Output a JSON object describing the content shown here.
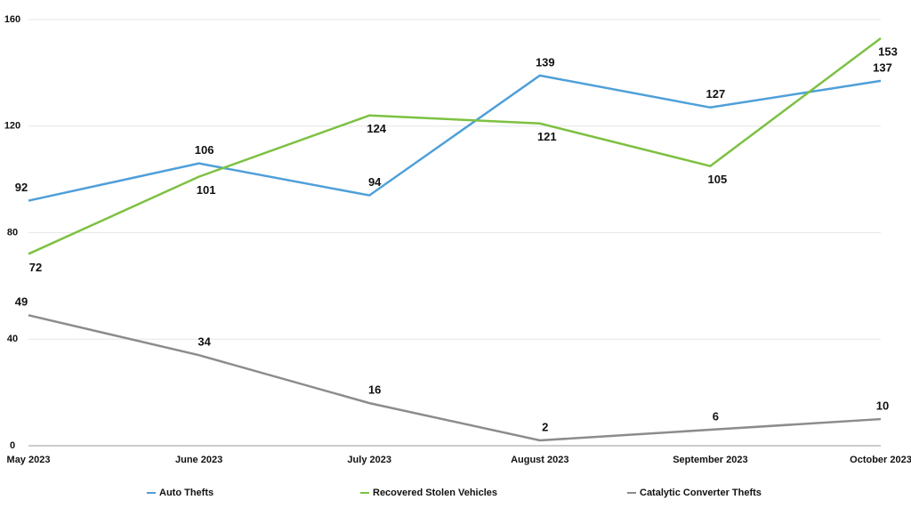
{
  "chart_data": {
    "type": "line",
    "categories": [
      "May 2023",
      "June 2023",
      "July 2023",
      "August 2023",
      "September 2023",
      "October 2023"
    ],
    "series": [
      {
        "name": "Auto Thefts",
        "color": "#4f9fd9",
        "values": [
          92,
          106,
          94,
          139,
          127,
          137
        ]
      },
      {
        "name": "Recovered Stolen Vehicles",
        "color": "#7dc142",
        "values": [
          72,
          101,
          124,
          121,
          105,
          153
        ]
      },
      {
        "name": "Catalytic Converter Thefts",
        "color": "#8c8c8c",
        "values": [
          49,
          34,
          16,
          2,
          6,
          10
        ]
      }
    ],
    "ylim": [
      0,
      160
    ],
    "yticks": [
      0,
      40,
      80,
      120,
      160
    ],
    "grid": true,
    "legend": "bottom"
  }
}
